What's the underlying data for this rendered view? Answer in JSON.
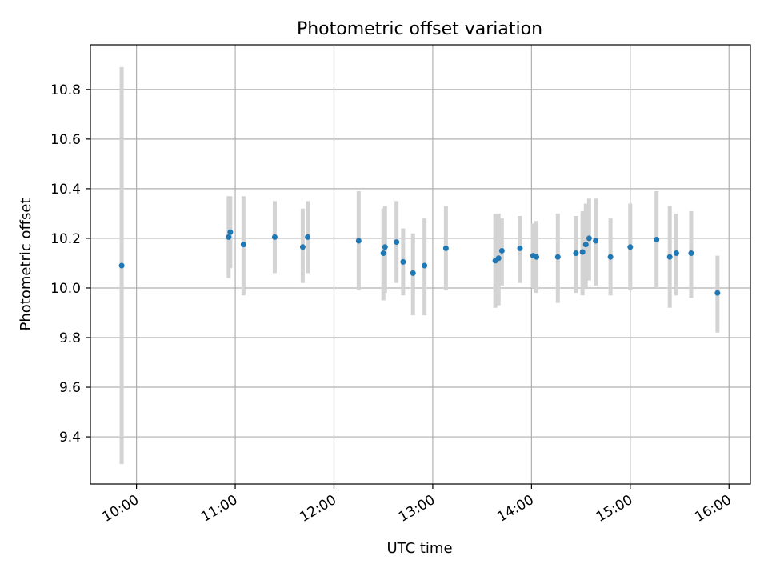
{
  "chart_data": {
    "type": "scatter",
    "title": "Photometric offset variation",
    "xlabel": "UTC time",
    "ylabel": "Photometric offset",
    "xlim": [
      "09:32",
      "16:13"
    ],
    "ylim": [
      9.21,
      10.98
    ],
    "grid": true,
    "x_ticks": [
      "10:00",
      "11:00",
      "12:00",
      "13:00",
      "14:00",
      "15:00",
      "16:00"
    ],
    "y_ticks": [
      9.4,
      9.6,
      9.8,
      10.0,
      10.2,
      10.4,
      10.6,
      10.8
    ],
    "colors": {
      "point": "#1f77b4",
      "errorbar": "#d3d3d3",
      "grid": "#b0b0b0"
    },
    "points": [
      {
        "t": "09:51",
        "y": 10.09,
        "lo": 9.29,
        "hi": 10.89
      },
      {
        "t": "10:56",
        "y": 10.205,
        "lo": 10.04,
        "hi": 10.37
      },
      {
        "t": "10:57",
        "y": 10.225,
        "lo": 10.08,
        "hi": 10.37
      },
      {
        "t": "11:05",
        "y": 10.175,
        "lo": 9.97,
        "hi": 10.37
      },
      {
        "t": "11:24",
        "y": 10.205,
        "lo": 10.06,
        "hi": 10.35
      },
      {
        "t": "11:41",
        "y": 10.165,
        "lo": 10.02,
        "hi": 10.32
      },
      {
        "t": "11:44",
        "y": 10.205,
        "lo": 10.06,
        "hi": 10.35
      },
      {
        "t": "12:15",
        "y": 10.19,
        "lo": 9.99,
        "hi": 10.39
      },
      {
        "t": "12:30",
        "y": 10.14,
        "lo": 9.95,
        "hi": 10.32
      },
      {
        "t": "12:31",
        "y": 10.165,
        "lo": 9.98,
        "hi": 10.33
      },
      {
        "t": "12:38",
        "y": 10.185,
        "lo": 10.02,
        "hi": 10.35
      },
      {
        "t": "12:42",
        "y": 10.105,
        "lo": 9.97,
        "hi": 10.24
      },
      {
        "t": "12:48",
        "y": 10.06,
        "lo": 9.89,
        "hi": 10.22
      },
      {
        "t": "12:55",
        "y": 10.09,
        "lo": 9.89,
        "hi": 10.28
      },
      {
        "t": "13:08",
        "y": 10.16,
        "lo": 9.99,
        "hi": 10.33
      },
      {
        "t": "13:38",
        "y": 10.11,
        "lo": 9.92,
        "hi": 10.3
      },
      {
        "t": "13:40",
        "y": 10.12,
        "lo": 9.93,
        "hi": 10.3
      },
      {
        "t": "13:42",
        "y": 10.15,
        "lo": 10.01,
        "hi": 10.28
      },
      {
        "t": "13:53",
        "y": 10.16,
        "lo": 10.02,
        "hi": 10.29
      },
      {
        "t": "14:01",
        "y": 10.13,
        "lo": 10.0,
        "hi": 10.26
      },
      {
        "t": "14:03",
        "y": 10.125,
        "lo": 9.98,
        "hi": 10.27
      },
      {
        "t": "14:16",
        "y": 10.125,
        "lo": 9.94,
        "hi": 10.3
      },
      {
        "t": "14:27",
        "y": 10.14,
        "lo": 9.98,
        "hi": 10.29
      },
      {
        "t": "14:31",
        "y": 10.145,
        "lo": 9.97,
        "hi": 10.31
      },
      {
        "t": "14:33",
        "y": 10.175,
        "lo": 10.0,
        "hi": 10.34
      },
      {
        "t": "14:35",
        "y": 10.2,
        "lo": 10.03,
        "hi": 10.36
      },
      {
        "t": "14:39",
        "y": 10.19,
        "lo": 10.01,
        "hi": 10.36
      },
      {
        "t": "14:48",
        "y": 10.125,
        "lo": 9.97,
        "hi": 10.28
      },
      {
        "t": "15:00",
        "y": 10.165,
        "lo": 9.99,
        "hi": 10.34
      },
      {
        "t": "15:16",
        "y": 10.195,
        "lo": 10.0,
        "hi": 10.39
      },
      {
        "t": "15:24",
        "y": 10.125,
        "lo": 9.92,
        "hi": 10.33
      },
      {
        "t": "15:28",
        "y": 10.14,
        "lo": 9.97,
        "hi": 10.3
      },
      {
        "t": "15:37",
        "y": 10.14,
        "lo": 9.96,
        "hi": 10.31
      },
      {
        "t": "15:53",
        "y": 9.98,
        "lo": 9.82,
        "hi": 10.13
      }
    ]
  }
}
